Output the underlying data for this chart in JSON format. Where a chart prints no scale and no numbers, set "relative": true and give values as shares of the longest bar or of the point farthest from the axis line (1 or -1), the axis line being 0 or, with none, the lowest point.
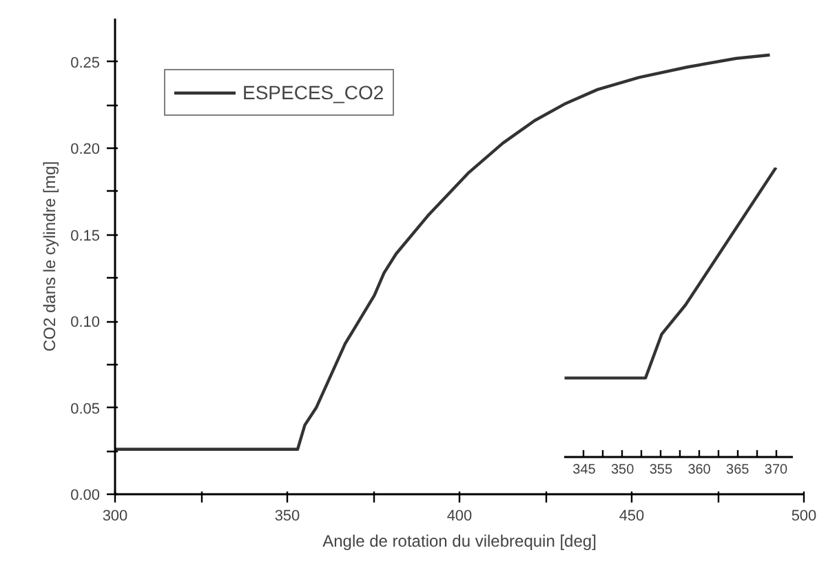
{
  "chart_data": [
    {
      "type": "line",
      "xlabel": "Angle de rotation du vilebrequin [deg]",
      "ylabel": "CO2 dans le cylindre [mg]",
      "xlim": [
        300,
        500
      ],
      "ylim": [
        0,
        0.275
      ],
      "xticks": [
        300,
        {
          "value": 325,
          "label": null
        },
        350,
        {
          "value": 375,
          "label": null
        },
        400,
        {
          "value": 425,
          "label": null
        },
        450,
        {
          "value": 475,
          "label": null
        },
        500
      ],
      "yticks": [
        "0.00",
        {
          "value": 0.025,
          "label": null
        },
        {
          "value": 0.05,
          "label": "0.05"
        },
        {
          "value": 0.075,
          "label": null
        },
        {
          "value": 0.1,
          "label": "0.10"
        },
        {
          "value": 0.125,
          "label": null
        },
        {
          "value": 0.15,
          "label": "0.15"
        },
        {
          "value": 0.175,
          "label": null
        },
        {
          "value": 0.2,
          "label": "0.20"
        },
        {
          "value": 0.225,
          "label": null
        },
        {
          "value": 0.25,
          "label": "0.25"
        }
      ],
      "legend": "top left",
      "grid": false,
      "marker": "none",
      "line_style": "solid",
      "series": [
        {
          "name": "ESPECES_CO2",
          "color": "#333333",
          "x": [
            300,
            353,
            355.1,
            358.4,
            366.8,
            375.3,
            378.1,
            381.6,
            390.8,
            402.7,
            412.6,
            421.8,
            430.9,
            440.1,
            452.1,
            466.2,
            480.3,
            490.1
          ],
          "values": [
            0.026,
            0.026,
            0.04,
            0.05,
            0.087,
            0.115,
            0.128,
            0.139,
            0.161,
            0.186,
            0.203,
            0.216,
            0.226,
            0.234,
            0.241,
            0.247,
            0.252,
            0.254
          ]
        }
      ]
    },
    {
      "type": "line",
      "relative": true,
      "xlim": [
        342.4,
        372.2
      ],
      "tick_labels": "x",
      "xticks": [
        345,
        {
          "value": 347.5,
          "label": null
        },
        350,
        {
          "value": 352.5,
          "label": null
        },
        355,
        {
          "value": 357.5,
          "label": null
        },
        360,
        {
          "value": 362.5,
          "label": null
        },
        365,
        {
          "value": 367.5,
          "label": null
        },
        370
      ],
      "grid": false,
      "marker": "none",
      "line_style": "solid",
      "series": [
        {
          "color": "#333333",
          "x": [
            342.45,
            353,
            355.1,
            358.2,
            370
          ],
          "values": [
            0.273,
            0.273,
            0.424,
            0.525,
            1
          ]
        }
      ]
    }
  ]
}
